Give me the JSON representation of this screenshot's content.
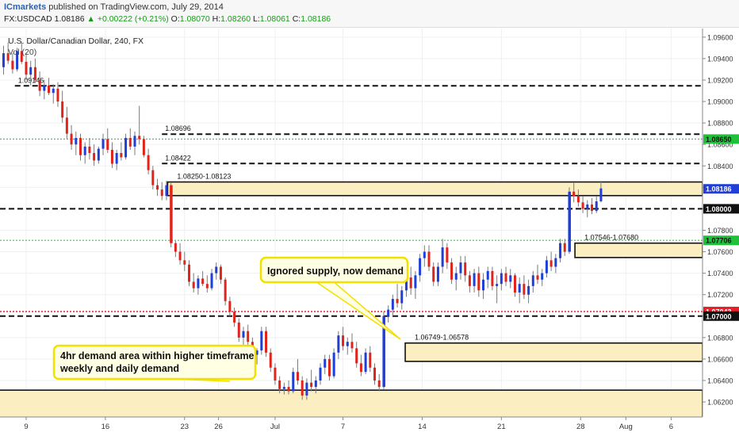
{
  "header": {
    "publisher": "ICmarkets",
    "published_text": "published on TradingView.com, July 29, 2014",
    "symbol": "FX:USDCAD",
    "last": "1.08186",
    "change": "+0.00222 (+0.21%)",
    "up_arrow": "▲",
    "o_label": "O:",
    "o_value": "1.08070",
    "h_label": "H:",
    "h_value": "1.08260",
    "l_label": "L:",
    "l_value": "1.08061",
    "c_label": "C:",
    "c_value": "1.08186"
  },
  "chart_data": {
    "type": "candlestick",
    "title": "U.S. Dollar/Canadian Dollar, 240, FX",
    "volume_label": "Vol (20)",
    "ylim": [
      1.0606,
      1.0968
    ],
    "y_ticks": [
      "1.09600",
      "1.09400",
      "1.09200",
      "1.09000",
      "1.08800",
      "1.08600",
      "1.08400",
      "1.08200",
      "1.08000",
      "1.07800",
      "1.07600",
      "1.07400",
      "1.07200",
      "1.07000",
      "1.06800",
      "1.06600",
      "1.06400",
      "1.06200"
    ],
    "y_tick_values": [
      1.096,
      1.094,
      1.092,
      1.09,
      1.088,
      1.086,
      1.084,
      1.082,
      1.08,
      1.078,
      1.076,
      1.074,
      1.072,
      1.07,
      1.068,
      1.066,
      1.064,
      1.062
    ],
    "x_ticks": [
      {
        "label": "9",
        "day": 9
      },
      {
        "label": "16",
        "day": 16
      },
      {
        "label": "23",
        "day": 23
      },
      {
        "label": "26",
        "day": 26
      },
      {
        "label": "Jul",
        "day": 31
      },
      {
        "label": "7",
        "day": 37
      },
      {
        "label": "14",
        "day": 44
      },
      {
        "label": "21",
        "day": 51
      },
      {
        "label": "28",
        "day": 58
      },
      {
        "label": "Aug",
        "day": 62
      },
      {
        "label": "6",
        "day": 66
      }
    ],
    "price_labels": [
      {
        "text": "1.08650",
        "value": 1.0865,
        "style": "green"
      },
      {
        "text": "1.08186",
        "value": 1.08186,
        "style": "blue"
      },
      {
        "text": "1.08000",
        "value": 1.08,
        "style": "black"
      },
      {
        "text": "1.07706",
        "value": 1.07706,
        "style": "green"
      },
      {
        "text": "1.07043",
        "value": 1.07043,
        "style": "red"
      },
      {
        "text": "1.07000",
        "value": 1.07,
        "style": "black"
      }
    ],
    "horizontal_lines": [
      {
        "value": 1.09146,
        "style": "black-dash",
        "label": "1.09146",
        "from_day": 8
      },
      {
        "value": 1.08696,
        "style": "black-dash",
        "label": "1.08696",
        "from_day": 21
      },
      {
        "value": 1.08422,
        "style": "black-dash",
        "label": "1.08422",
        "from_day": 21
      },
      {
        "value": 1.0865,
        "style": "green-dot",
        "label": "",
        "from_day": 0
      },
      {
        "value": 1.08,
        "style": "black-dash",
        "label": "",
        "from_day": 0
      },
      {
        "value": 1.07706,
        "style": "green-dot",
        "label": "",
        "from_day": 0
      },
      {
        "value": 1.07043,
        "style": "red-dot",
        "label": "",
        "from_day": 0
      },
      {
        "value": 1.07,
        "style": "black-dash",
        "label": "",
        "from_day": 0
      }
    ],
    "zones": [
      {
        "label": "1.08250-1.08123",
        "top": 1.0825,
        "bottom": 1.08123,
        "from_day": 21.5
      },
      {
        "label": "1.07546-1.07680",
        "top": 1.0768,
        "bottom": 1.07546,
        "from_day": 57.5
      },
      {
        "label": "1.06749-1.06578",
        "top": 1.06749,
        "bottom": 1.06578,
        "from_day": 42.5
      },
      {
        "label": "",
        "top": 1.0631,
        "bottom": 1.0598,
        "from_day": 0
      }
    ],
    "annotations": [
      {
        "text": "Ignored supply, now demand"
      },
      {
        "text": "4hr demand area within higher timeframe weekly and daily demand"
      }
    ],
    "candles": [
      [
        7.0,
        1.0932,
        1.0952,
        1.0925,
        1.0945
      ],
      [
        7.4,
        1.0945,
        1.0955,
        1.0935,
        1.0938
      ],
      [
        7.8,
        1.0938,
        1.0945,
        1.0926,
        1.093
      ],
      [
        8.2,
        1.093,
        1.095,
        1.0928,
        1.0947
      ],
      [
        8.6,
        1.0947,
        1.0955,
        1.0935,
        1.0937
      ],
      [
        9.0,
        1.0937,
        1.0945,
        1.092,
        1.0925
      ],
      [
        9.4,
        1.0925,
        1.0938,
        1.0915,
        1.0932
      ],
      [
        9.8,
        1.0932,
        1.094,
        1.0918,
        1.092
      ],
      [
        10.2,
        1.092,
        1.0928,
        1.0905,
        1.091
      ],
      [
        10.6,
        1.091,
        1.092,
        1.0902,
        1.0915
      ],
      [
        11.0,
        1.0915,
        1.0922,
        1.0906,
        1.0908
      ],
      [
        11.4,
        1.0908,
        1.0916,
        1.0898,
        1.0912
      ],
      [
        11.8,
        1.0912,
        1.0918,
        1.0895,
        1.09
      ],
      [
        12.2,
        1.09,
        1.091,
        1.088,
        1.0885
      ],
      [
        12.6,
        1.0885,
        1.0895,
        1.0865,
        1.087
      ],
      [
        13.0,
        1.087,
        1.0878,
        1.0855,
        1.086
      ],
      [
        13.4,
        1.086,
        1.0872,
        1.085,
        1.0866
      ],
      [
        13.8,
        1.0866,
        1.087,
        1.0845,
        1.085
      ],
      [
        14.2,
        1.085,
        1.0862,
        1.0842,
        1.0858
      ],
      [
        14.6,
        1.0858,
        1.0866,
        1.0846,
        1.0852
      ],
      [
        15.0,
        1.0852,
        1.086,
        1.084,
        1.0845
      ],
      [
        15.4,
        1.0845,
        1.0858,
        1.0842,
        1.0856
      ],
      [
        15.8,
        1.0856,
        1.087,
        1.085,
        1.0865
      ],
      [
        16.2,
        1.0865,
        1.0875,
        1.0852,
        1.0855
      ],
      [
        16.6,
        1.0855,
        1.0862,
        1.0838,
        1.0842
      ],
      [
        17.0,
        1.0842,
        1.0855,
        1.0836,
        1.0852
      ],
      [
        17.4,
        1.0852,
        1.0862,
        1.0845,
        1.0848
      ],
      [
        17.8,
        1.0848,
        1.087,
        1.0846,
        1.0866
      ],
      [
        18.2,
        1.0866,
        1.0875,
        1.0855,
        1.0858
      ],
      [
        18.6,
        1.0858,
        1.0872,
        1.085,
        1.0868
      ],
      [
        19.0,
        1.0868,
        1.0896,
        1.086,
        1.0865
      ],
      [
        19.4,
        1.0865,
        1.0868,
        1.0848,
        1.085
      ],
      [
        19.8,
        1.085,
        1.0856,
        1.0832,
        1.0836
      ],
      [
        20.2,
        1.0836,
        1.084,
        1.0818,
        1.0822
      ],
      [
        20.6,
        1.0822,
        1.0828,
        1.0812,
        1.0818
      ],
      [
        21.0,
        1.0818,
        1.0825,
        1.0808,
        1.0812
      ],
      [
        21.4,
        1.0812,
        1.0826,
        1.0808,
        1.0822
      ],
      [
        21.8,
        1.0822,
        1.0824,
        1.0764,
        1.0768
      ],
      [
        22.2,
        1.0768,
        1.077,
        1.0755,
        1.076
      ],
      [
        22.6,
        1.076,
        1.0768,
        1.0748,
        1.0752
      ],
      [
        23.0,
        1.0752,
        1.076,
        1.0742,
        1.0748
      ],
      [
        23.4,
        1.0748,
        1.0752,
        1.0728,
        1.0732
      ],
      [
        23.8,
        1.0732,
        1.074,
        1.0722,
        1.0726
      ],
      [
        24.2,
        1.0726,
        1.0738,
        1.072,
        1.0735
      ],
      [
        24.6,
        1.0735,
        1.0742,
        1.0728,
        1.073
      ],
      [
        25.0,
        1.073,
        1.0738,
        1.0722,
        1.0726
      ],
      [
        25.4,
        1.0726,
        1.0744,
        1.0724,
        1.074
      ],
      [
        25.8,
        1.074,
        1.075,
        1.0734,
        1.0746
      ],
      [
        26.2,
        1.0746,
        1.0748,
        1.073,
        1.0734
      ],
      [
        26.6,
        1.0734,
        1.0736,
        1.071,
        1.0714
      ],
      [
        27.0,
        1.0714,
        1.0718,
        1.07,
        1.0704
      ],
      [
        27.4,
        1.0704,
        1.0708,
        1.069,
        1.0694
      ],
      [
        27.8,
        1.0694,
        1.0698,
        1.0676,
        1.068
      ],
      [
        28.2,
        1.068,
        1.069,
        1.0668,
        1.0686
      ],
      [
        28.6,
        1.0686,
        1.0692,
        1.0672,
        1.0676
      ],
      [
        29.0,
        1.0676,
        1.068,
        1.066,
        1.0664
      ],
      [
        29.4,
        1.0664,
        1.067,
        1.0655,
        1.0668
      ],
      [
        29.8,
        1.0668,
        1.069,
        1.0664,
        1.0686
      ],
      [
        30.2,
        1.0686,
        1.069,
        1.0662,
        1.0666
      ],
      [
        30.6,
        1.0666,
        1.067,
        1.0648,
        1.0652
      ],
      [
        31.0,
        1.0652,
        1.0656,
        1.0636,
        1.064
      ],
      [
        31.4,
        1.064,
        1.0644,
        1.0628,
        1.0632
      ],
      [
        31.8,
        1.0632,
        1.0638,
        1.0627,
        1.0634
      ],
      [
        32.2,
        1.0634,
        1.064,
        1.0627,
        1.063
      ],
      [
        32.6,
        1.063,
        1.0652,
        1.0628,
        1.0648
      ],
      [
        33.0,
        1.0648,
        1.066,
        1.0636,
        1.064
      ],
      [
        33.4,
        1.064,
        1.0644,
        1.0622,
        1.0626
      ],
      [
        33.8,
        1.0626,
        1.0642,
        1.0622,
        1.0638
      ],
      [
        34.2,
        1.0638,
        1.065,
        1.063,
        1.0634
      ],
      [
        34.6,
        1.0634,
        1.0644,
        1.0628,
        1.064
      ],
      [
        35.0,
        1.064,
        1.0656,
        1.0636,
        1.0652
      ],
      [
        35.4,
        1.0652,
        1.0664,
        1.0646,
        1.066
      ],
      [
        35.8,
        1.066,
        1.0664,
        1.064,
        1.0644
      ],
      [
        36.2,
        1.0644,
        1.067,
        1.0642,
        1.0666
      ],
      [
        36.6,
        1.0666,
        1.0686,
        1.066,
        1.0682
      ],
      [
        37.0,
        1.0682,
        1.069,
        1.0668,
        1.0672
      ],
      [
        37.4,
        1.0672,
        1.068,
        1.0664,
        1.0676
      ],
      [
        37.8,
        1.0676,
        1.0684,
        1.0666,
        1.067
      ],
      [
        38.2,
        1.067,
        1.0676,
        1.0652,
        1.0656
      ],
      [
        38.6,
        1.0656,
        1.0664,
        1.0644,
        1.0648
      ],
      [
        39.0,
        1.0648,
        1.067,
        1.0646,
        1.0666
      ],
      [
        39.4,
        1.0666,
        1.0672,
        1.0648,
        1.0652
      ],
      [
        39.8,
        1.0652,
        1.0656,
        1.0636,
        1.064
      ],
      [
        40.2,
        1.064,
        1.0646,
        1.063,
        1.0634
      ],
      [
        40.6,
        1.0634,
        1.0704,
        1.0632,
        1.07
      ],
      [
        41.0,
        1.07,
        1.071,
        1.0694,
        1.0706
      ],
      [
        41.4,
        1.0706,
        1.072,
        1.07,
        1.0716
      ],
      [
        41.8,
        1.0716,
        1.073,
        1.0708,
        1.0712
      ],
      [
        42.2,
        1.0712,
        1.0728,
        1.0706,
        1.0724
      ],
      [
        42.6,
        1.0724,
        1.074,
        1.0718,
        1.0736
      ],
      [
        43.0,
        1.0736,
        1.0746,
        1.072,
        1.0726
      ],
      [
        43.4,
        1.0726,
        1.0742,
        1.0716,
        1.0738
      ],
      [
        43.8,
        1.0738,
        1.0758,
        1.0732,
        1.0754
      ],
      [
        44.2,
        1.0754,
        1.0766,
        1.0746,
        1.076
      ],
      [
        44.6,
        1.076,
        1.0766,
        1.0742,
        1.0746
      ],
      [
        45.0,
        1.0746,
        1.075,
        1.0728,
        1.0732
      ],
      [
        45.4,
        1.0732,
        1.075,
        1.0728,
        1.0746
      ],
      [
        45.8,
        1.0746,
        1.0772,
        1.074,
        1.0764
      ],
      [
        46.2,
        1.0764,
        1.0768,
        1.0744,
        1.075
      ],
      [
        46.6,
        1.075,
        1.0754,
        1.073,
        1.0734
      ],
      [
        47.0,
        1.0734,
        1.0746,
        1.0724,
        1.074
      ],
      [
        47.4,
        1.074,
        1.0756,
        1.0734,
        1.075
      ],
      [
        47.8,
        1.075,
        1.0756,
        1.0732,
        1.0738
      ],
      [
        48.2,
        1.0738,
        1.0742,
        1.0722,
        1.0728
      ],
      [
        48.6,
        1.0728,
        1.0744,
        1.0722,
        1.074
      ],
      [
        49.0,
        1.074,
        1.0746,
        1.0718,
        1.0724
      ],
      [
        49.4,
        1.0724,
        1.074,
        1.0716,
        1.0734
      ],
      [
        49.8,
        1.0734,
        1.0746,
        1.0726,
        1.0742
      ],
      [
        50.2,
        1.0742,
        1.0746,
        1.0724,
        1.0728
      ],
      [
        50.6,
        1.0728,
        1.0738,
        1.0712,
        1.073
      ],
      [
        51.0,
        1.073,
        1.0744,
        1.0724,
        1.074
      ],
      [
        51.4,
        1.074,
        1.0746,
        1.0728,
        1.0732
      ],
      [
        51.8,
        1.0732,
        1.0744,
        1.0726,
        1.0738
      ],
      [
        52.2,
        1.0738,
        1.074,
        1.0718,
        1.0722
      ],
      [
        52.6,
        1.0722,
        1.0736,
        1.0712,
        1.073
      ],
      [
        53.0,
        1.073,
        1.0738,
        1.0716,
        1.072
      ],
      [
        53.4,
        1.072,
        1.0734,
        1.0712,
        1.0728
      ],
      [
        53.8,
        1.0728,
        1.0742,
        1.0722,
        1.0738
      ],
      [
        54.2,
        1.0738,
        1.0748,
        1.073,
        1.0734
      ],
      [
        54.6,
        1.0734,
        1.0744,
        1.0728,
        1.074
      ],
      [
        55.0,
        1.074,
        1.0756,
        1.0736,
        1.0752
      ],
      [
        55.4,
        1.0752,
        1.076,
        1.0742,
        1.0746
      ],
      [
        55.8,
        1.0746,
        1.0758,
        1.074,
        1.0754
      ],
      [
        56.2,
        1.0754,
        1.0772,
        1.075,
        1.0768
      ],
      [
        56.6,
        1.0768,
        1.0772,
        1.0756,
        1.076
      ],
      [
        57.0,
        1.076,
        1.082,
        1.0758,
        1.0816
      ],
      [
        57.4,
        1.0816,
        1.0824,
        1.0806,
        1.0812
      ],
      [
        57.8,
        1.0812,
        1.0818,
        1.0802,
        1.0806
      ],
      [
        58.2,
        1.0806,
        1.0812,
        1.0796,
        1.08
      ],
      [
        58.6,
        1.08,
        1.0808,
        1.0792,
        1.0804
      ],
      [
        59.0,
        1.0804,
        1.081,
        1.0795,
        1.0798
      ],
      [
        59.4,
        1.0798,
        1.0812,
        1.0796,
        1.0807
      ],
      [
        59.8,
        1.0807,
        1.0826,
        1.0806,
        1.0819
      ]
    ]
  }
}
